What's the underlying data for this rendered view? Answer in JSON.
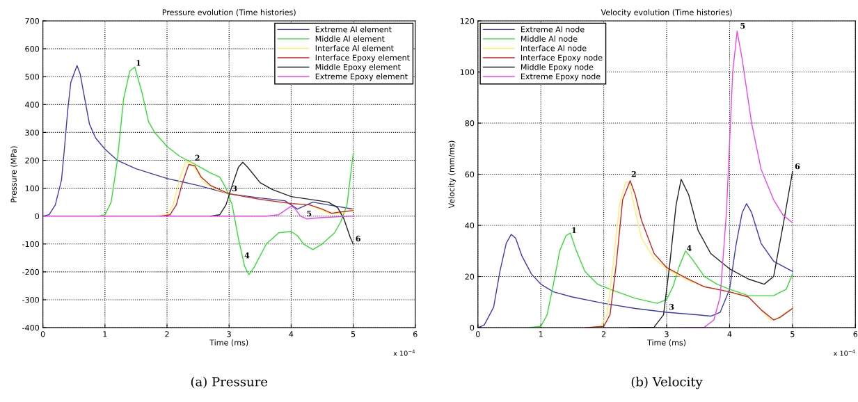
{
  "chart_data": [
    {
      "type": "line",
      "title": "Pressure evolution (Time histories)",
      "xlabel": "Time (ms)",
      "ylabel": "Pressure (MPa)",
      "xlim": [
        0,
        6
      ],
      "xticks": [
        0,
        1,
        2,
        3,
        4,
        5,
        6
      ],
      "ylim": [
        -400,
        700
      ],
      "yticks": [
        -400,
        -300,
        -200,
        -100,
        0,
        100,
        200,
        300,
        400,
        500,
        600,
        700
      ],
      "grid": true,
      "legend": "top right",
      "series": [
        {
          "name": "Extreme Al element",
          "color": "#3a3ab8",
          "x": [
            0,
            0.1,
            0.2,
            0.3,
            0.35,
            0.4,
            0.45,
            0.55,
            0.6,
            0.65,
            0.75,
            0.85,
            1.0,
            1.2,
            1.5,
            2.0,
            2.5,
            3.0,
            3.5,
            3.9,
            4.1,
            4.35,
            4.6,
            5.0
          ],
          "values": [
            0,
            5,
            40,
            130,
            250,
            380,
            480,
            540,
            510,
            450,
            330,
            280,
            240,
            200,
            170,
            135,
            110,
            80,
            65,
            55,
            25,
            50,
            40,
            25
          ]
        },
        {
          "name": "Middle Al element",
          "color": "#33dd33",
          "x": [
            0.9,
            1.0,
            1.1,
            1.2,
            1.3,
            1.4,
            1.48,
            1.6,
            1.7,
            1.8,
            2.0,
            2.2,
            2.5,
            2.7,
            2.85,
            2.95,
            3.05,
            3.15,
            3.25,
            3.32,
            3.4,
            3.6,
            3.8,
            4.0,
            4.1,
            4.2,
            4.35,
            4.5,
            4.7,
            4.8,
            4.9,
            5.0
          ],
          "values": [
            0,
            5,
            50,
            200,
            420,
            520,
            535,
            440,
            340,
            300,
            250,
            215,
            180,
            155,
            140,
            100,
            40,
            -80,
            -180,
            -210,
            -185,
            -100,
            -60,
            -55,
            -70,
            -100,
            -120,
            -100,
            -60,
            -20,
            40,
            225
          ]
        },
        {
          "name": "Interface Al element",
          "color": "#ffee66",
          "x": [
            1.8,
            2.0,
            2.1,
            2.2,
            2.3,
            2.4,
            2.5,
            2.6,
            2.8,
            3.0,
            3.5,
            4.0,
            4.3,
            4.6,
            4.8,
            5.0
          ],
          "values": [
            0,
            5,
            40,
            130,
            195,
            190,
            155,
            120,
            95,
            80,
            60,
            45,
            40,
            10,
            10,
            25
          ]
        },
        {
          "name": "Interface Epoxy element",
          "color": "#cc2222",
          "x": [
            1.9,
            2.05,
            2.15,
            2.25,
            2.35,
            2.45,
            2.55,
            2.7,
            2.9,
            3.0,
            3.5,
            4.0,
            4.3,
            4.5,
            4.65,
            4.8,
            5.0
          ],
          "values": [
            0,
            5,
            40,
            120,
            185,
            180,
            140,
            110,
            90,
            80,
            60,
            45,
            40,
            25,
            10,
            15,
            20
          ]
        },
        {
          "name": "Middle Epoxy element",
          "color": "#222222",
          "x": [
            2.7,
            2.85,
            2.95,
            3.05,
            3.15,
            3.22,
            3.3,
            3.5,
            3.7,
            4.0,
            4.3,
            4.6,
            4.75,
            4.85,
            4.95,
            5.0
          ],
          "values": [
            0,
            5,
            40,
            110,
            175,
            193,
            175,
            120,
            95,
            70,
            60,
            50,
            30,
            -10,
            -75,
            -100
          ]
        },
        {
          "name": "Extreme Epoxy element",
          "color": "#ee44ee",
          "x": [
            0,
            3.6,
            3.8,
            3.9,
            4.0,
            4.05,
            4.15,
            4.25,
            4.5,
            5.0
          ],
          "values": [
            0,
            0,
            5,
            20,
            35,
            30,
            0,
            -10,
            -5,
            0
          ]
        }
      ],
      "annotations": [
        "x 10$^{−4}$",
        "(a) Pressure",
        {
          "text": "1",
          "x": 1.48,
          "y": 530
        },
        {
          "text": "2",
          "x": 2.43,
          "y": 190
        },
        {
          "text": "3",
          "x": 3.03,
          "y": 80
        },
        {
          "text": "4",
          "x": 3.23,
          "y": -160
        },
        {
          "text": "5",
          "x": 4.23,
          "y": -10
        },
        {
          "text": "6",
          "x": 5.02,
          "y": -100
        }
      ]
    },
    {
      "type": "line",
      "title": "Velocity evolution (Time histories)",
      "xlabel": "Time (ms)",
      "ylabel": "Velocity (mm/ms)",
      "xlim": [
        0,
        6
      ],
      "xticks": [
        0,
        1,
        2,
        3,
        4,
        5,
        6
      ],
      "ylim": [
        0,
        120
      ],
      "yticks": [
        0,
        20,
        40,
        60,
        80,
        100,
        120
      ],
      "grid": true,
      "legend": "top left",
      "series": [
        {
          "name": "Extreme Al node",
          "color": "#3a3ab8",
          "x": [
            0,
            0.1,
            0.25,
            0.35,
            0.45,
            0.53,
            0.6,
            0.7,
            0.85,
            1.0,
            1.2,
            1.5,
            2.0,
            2.5,
            3.0,
            3.5,
            3.7,
            3.85,
            4.0,
            4.1,
            4.2,
            4.27,
            4.35,
            4.5,
            4.7,
            5.0
          ],
          "values": [
            0,
            1,
            8,
            22,
            33,
            36.5,
            35,
            28,
            21,
            17,
            14,
            12,
            9.5,
            7.5,
            6,
            5,
            4.5,
            6,
            15,
            32,
            45,
            48.5,
            45,
            33,
            26,
            22
          ]
        },
        {
          "name": "Middle Al node",
          "color": "#33dd33",
          "x": [
            0.8,
            1.0,
            1.1,
            1.2,
            1.3,
            1.4,
            1.47,
            1.55,
            1.7,
            1.9,
            2.1,
            2.5,
            2.85,
            3.0,
            3.1,
            3.2,
            3.3,
            3.4,
            3.6,
            3.8,
            4.0,
            4.3,
            4.7,
            4.9,
            5.0
          ],
          "values": [
            0,
            0.5,
            5,
            17,
            30,
            36,
            37,
            31,
            22,
            17,
            15,
            11.5,
            9.5,
            11,
            16,
            24,
            30,
            27,
            20,
            17,
            15,
            12.5,
            12.5,
            15,
            21
          ]
        },
        {
          "name": "Interface Al node",
          "color": "#ffee66",
          "x": [
            1.7,
            1.95,
            2.05,
            2.15,
            2.25,
            2.35,
            2.4,
            2.5,
            2.6,
            2.8,
            3.0,
            3.3,
            3.6,
            4.0,
            4.3,
            4.5,
            4.65,
            4.75,
            4.9,
            5.0
          ],
          "values": [
            0,
            0.5,
            5,
            25,
            48,
            57,
            57,
            46,
            35,
            27,
            23,
            19,
            16,
            14,
            12,
            7,
            3,
            3.5,
            6,
            7.5
          ]
        },
        {
          "name": "Interface Epoxy node",
          "color": "#cc2222",
          "x": [
            1.7,
            2.0,
            2.1,
            2.2,
            2.3,
            2.42,
            2.5,
            2.6,
            2.8,
            3.0,
            3.3,
            3.6,
            4.0,
            4.3,
            4.5,
            4.7,
            4.8,
            5.0
          ],
          "values": [
            0,
            0.5,
            5,
            25,
            50,
            57.5,
            52,
            42,
            29,
            23.5,
            19.5,
            16,
            14,
            12,
            7,
            3,
            4,
            7.5
          ]
        },
        {
          "name": "Middle Epoxy node",
          "color": "#222222",
          "x": [
            2.4,
            2.8,
            2.95,
            3.05,
            3.15,
            3.23,
            3.35,
            3.5,
            3.7,
            4.0,
            4.3,
            4.55,
            4.7,
            4.85,
            5.0
          ],
          "values": [
            0,
            0.2,
            5,
            25,
            48,
            58,
            52,
            38,
            29,
            23,
            19,
            17,
            20,
            40,
            61
          ]
        },
        {
          "name": "Extreme Epoxy node",
          "color": "#ee44ee",
          "x": [
            3.2,
            3.6,
            3.75,
            3.85,
            3.95,
            4.05,
            4.12,
            4.2,
            4.35,
            4.5,
            4.7,
            4.85,
            5.0
          ],
          "values": [
            0,
            0.2,
            3,
            12,
            45,
            100,
            116,
            105,
            80,
            62,
            50,
            44,
            41
          ]
        }
      ],
      "annotations": [
        "x 10$^{−4}$",
        "(b) Velocity",
        {
          "text": "1",
          "x": 1.47,
          "y": 36
        },
        {
          "text": "2",
          "x": 2.42,
          "y": 58
        },
        {
          "text": "3",
          "x": 3.02,
          "y": 6
        },
        {
          "text": "4",
          "x": 3.3,
          "y": 29
        },
        {
          "text": "5",
          "x": 4.15,
          "y": 116
        },
        {
          "text": "6",
          "x": 5.02,
          "y": 61
        }
      ]
    }
  ]
}
